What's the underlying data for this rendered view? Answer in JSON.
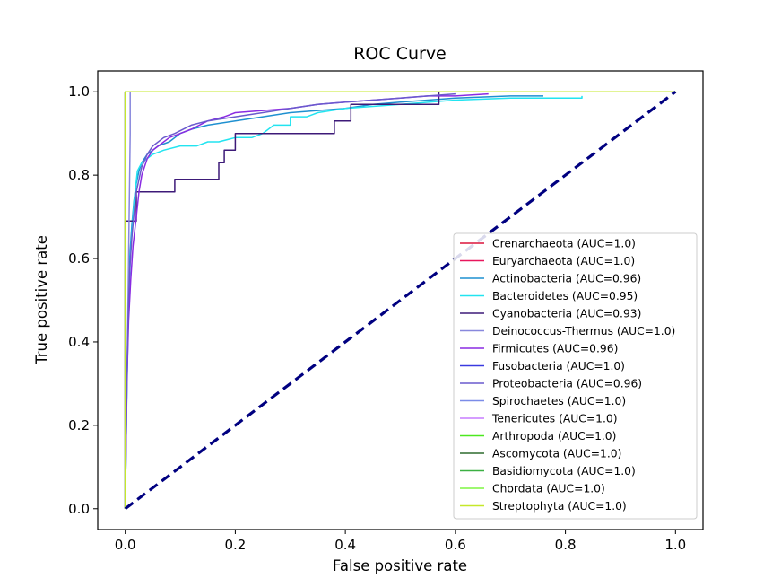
{
  "chart_data": {
    "type": "line",
    "title": "ROC Curve",
    "xlabel": "False positive rate",
    "ylabel": "True positive rate",
    "xlim": [
      -0.05,
      1.05
    ],
    "ylim": [
      -0.05,
      1.05
    ],
    "xticks": [
      0.0,
      0.2,
      0.4,
      0.6,
      0.8,
      1.0
    ],
    "yticks": [
      0.0,
      0.2,
      0.4,
      0.6,
      0.8,
      1.0
    ],
    "xtick_labels": [
      "0.0",
      "0.2",
      "0.4",
      "0.6",
      "0.8",
      "1.0"
    ],
    "ytick_labels": [
      "0.0",
      "0.2",
      "0.4",
      "0.6",
      "0.8",
      "1.0"
    ],
    "legend_position": "lower-right",
    "diagonal": {
      "color": "#000080",
      "style": "dashed",
      "x": [
        0,
        1
      ],
      "y": [
        0,
        1
      ]
    },
    "series": [
      {
        "name": "Crenarchaeota (AUC=1.0)",
        "color": "#dc143c",
        "x": [
          0,
          0,
          1
        ],
        "y": [
          0,
          1,
          1
        ]
      },
      {
        "name": "Euryarchaeota (AUC=1.0)",
        "color": "#e8175d",
        "x": [
          0,
          0,
          1
        ],
        "y": [
          0,
          1,
          1
        ]
      },
      {
        "name": "Actinobacteria (AUC=0.96)",
        "color": "#1e90d0",
        "x": [
          0,
          0.002,
          0.004,
          0.006,
          0.008,
          0.012,
          0.016,
          0.02,
          0.025,
          0.03,
          0.04,
          0.05,
          0.06,
          0.08,
          0.1,
          0.12,
          0.15,
          0.2,
          0.25,
          0.3,
          0.35,
          0.4,
          0.45,
          0.5,
          0.6,
          0.7,
          0.76
        ],
        "y": [
          0,
          0.2,
          0.35,
          0.5,
          0.6,
          0.68,
          0.74,
          0.78,
          0.81,
          0.83,
          0.85,
          0.86,
          0.87,
          0.88,
          0.9,
          0.91,
          0.92,
          0.93,
          0.94,
          0.95,
          0.955,
          0.96,
          0.97,
          0.975,
          0.985,
          0.99,
          0.99
        ]
      },
      {
        "name": "Bacteroidetes (AUC=0.95)",
        "color": "#22e4f0",
        "x": [
          0,
          0.003,
          0.006,
          0.01,
          0.014,
          0.018,
          0.022,
          0.03,
          0.04,
          0.05,
          0.07,
          0.1,
          0.13,
          0.15,
          0.17,
          0.2,
          0.23,
          0.25,
          0.27,
          0.3,
          0.3,
          0.33,
          0.35,
          0.4,
          0.5,
          0.6,
          0.7,
          0.83,
          0.83
        ],
        "y": [
          0,
          0.3,
          0.5,
          0.62,
          0.7,
          0.76,
          0.81,
          0.83,
          0.84,
          0.85,
          0.86,
          0.87,
          0.87,
          0.88,
          0.88,
          0.89,
          0.89,
          0.9,
          0.92,
          0.92,
          0.94,
          0.94,
          0.95,
          0.96,
          0.97,
          0.98,
          0.985,
          0.985,
          0.99
        ]
      },
      {
        "name": "Cyanobacteria (AUC=0.93)",
        "color": "#3d1a78",
        "x": [
          0,
          0,
          0.02,
          0.02,
          0.03,
          0.03,
          0.09,
          0.09,
          0.17,
          0.17,
          0.18,
          0.18,
          0.2,
          0.2,
          0.38,
          0.38,
          0.41,
          0.41,
          0.57,
          0.57
        ],
        "y": [
          0,
          0.69,
          0.69,
          0.76,
          0.76,
          0.76,
          0.76,
          0.79,
          0.79,
          0.83,
          0.83,
          0.86,
          0.86,
          0.9,
          0.9,
          0.93,
          0.93,
          0.97,
          0.97,
          1.0
        ]
      },
      {
        "name": "Deinococcus-Thermus (AUC=1.0)",
        "color": "#8888dd",
        "x": [
          0,
          0.009,
          0.009,
          1
        ],
        "y": [
          0,
          0.9,
          1,
          1
        ]
      },
      {
        "name": "Firmicutes (AUC=0.96)",
        "color": "#8a2be2",
        "x": [
          0,
          0.003,
          0.006,
          0.01,
          0.014,
          0.02,
          0.025,
          0.03,
          0.04,
          0.05,
          0.06,
          0.08,
          0.1,
          0.12,
          0.15,
          0.18,
          0.2,
          0.25,
          0.3,
          0.35,
          0.4,
          0.45,
          0.5,
          0.55,
          0.6,
          0.66
        ],
        "y": [
          0,
          0.3,
          0.45,
          0.55,
          0.63,
          0.7,
          0.76,
          0.8,
          0.84,
          0.86,
          0.87,
          0.89,
          0.9,
          0.91,
          0.93,
          0.94,
          0.95,
          0.955,
          0.96,
          0.97,
          0.975,
          0.98,
          0.985,
          0.99,
          0.99,
          0.995
        ]
      },
      {
        "name": "Fusobacteria (AUC=1.0)",
        "color": "#3a3ae0",
        "x": [
          0,
          0,
          1
        ],
        "y": [
          0,
          1,
          1
        ]
      },
      {
        "name": "Proteobacteria (AUC=0.96)",
        "color": "#6a5acd",
        "x": [
          0,
          0.002,
          0.005,
          0.008,
          0.012,
          0.016,
          0.02,
          0.025,
          0.03,
          0.04,
          0.05,
          0.07,
          0.09,
          0.12,
          0.15,
          0.2,
          0.25,
          0.3,
          0.35,
          0.4,
          0.45,
          0.5,
          0.55,
          0.6
        ],
        "y": [
          0,
          0.25,
          0.45,
          0.57,
          0.65,
          0.71,
          0.76,
          0.79,
          0.82,
          0.85,
          0.87,
          0.89,
          0.9,
          0.92,
          0.93,
          0.94,
          0.95,
          0.96,
          0.97,
          0.975,
          0.98,
          0.985,
          0.99,
          0.995
        ]
      },
      {
        "name": "Spirochaetes (AUC=1.0)",
        "color": "#7b8ce8",
        "x": [
          0,
          0,
          1
        ],
        "y": [
          0,
          1,
          1
        ]
      },
      {
        "name": "Tenericutes (AUC=1.0)",
        "color": "#c77dff",
        "x": [
          0,
          0,
          1
        ],
        "y": [
          0,
          1,
          1
        ]
      },
      {
        "name": "Arthropoda (AUC=1.0)",
        "color": "#4ce81f",
        "x": [
          0,
          0,
          1
        ],
        "y": [
          0,
          1,
          1
        ]
      },
      {
        "name": "Ascomycota (AUC=1.0)",
        "color": "#2e6b2e",
        "x": [
          0,
          0,
          1
        ],
        "y": [
          0,
          1,
          1
        ]
      },
      {
        "name": "Basidiomycota (AUC=1.0)",
        "color": "#3cb043",
        "x": [
          0,
          0,
          1
        ],
        "y": [
          0,
          1,
          1
        ]
      },
      {
        "name": "Chordata (AUC=1.0)",
        "color": "#7ef542",
        "x": [
          0,
          0,
          1
        ],
        "y": [
          0,
          1,
          1
        ]
      },
      {
        "name": "Streptophyta (AUC=1.0)",
        "color": "#c6e82a",
        "x": [
          0,
          0,
          1
        ],
        "y": [
          0,
          1,
          1
        ]
      }
    ]
  }
}
